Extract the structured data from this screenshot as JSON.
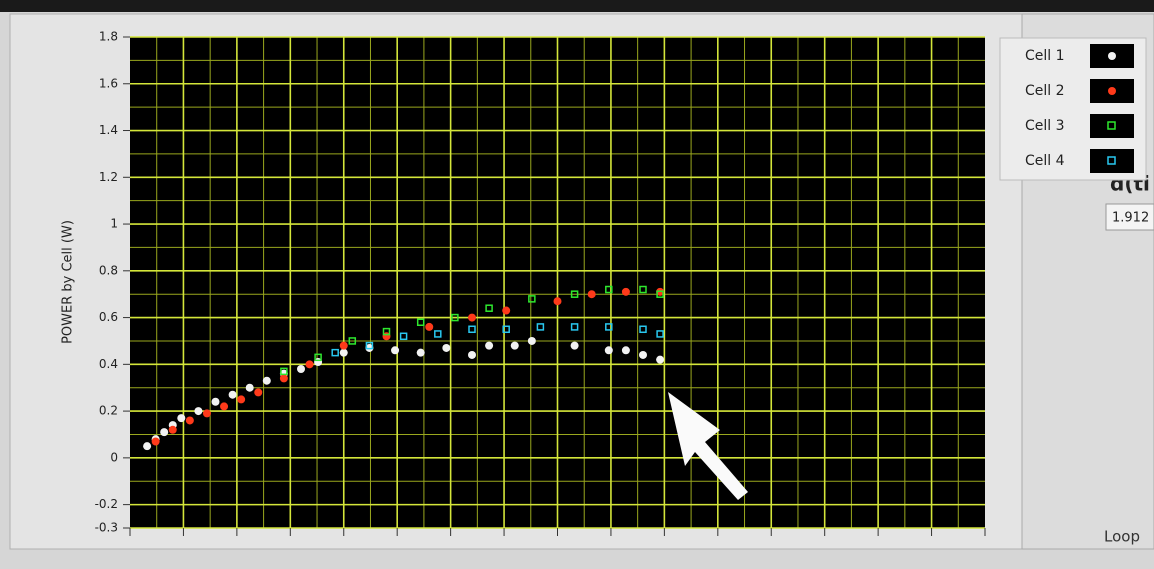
{
  "chart_data": {
    "type": "scatter",
    "ylabel": "POWER by Cell (W)",
    "ylim": [
      -0.3,
      1.8
    ],
    "yticks": [
      1.8,
      1.6,
      1.4,
      1.2,
      {
        "value": 1,
        "label": "1"
      },
      0.8,
      0.6,
      0.4,
      0.2,
      {
        "value": 0,
        "label": "0"
      },
      -0.2,
      -0.3
    ],
    "xlim": [
      0,
      100
    ],
    "grid": true,
    "legend": "top-right",
    "series": [
      {
        "name": "Cell 1",
        "color": "#f2f2f2",
        "x": [
          2,
          3,
          4,
          5,
          6,
          8,
          10,
          12,
          14,
          16,
          18,
          20,
          22,
          25,
          28,
          31,
          34,
          37,
          40,
          42,
          45,
          47,
          52,
          56,
          58,
          60,
          62
        ],
        "values": [
          0.05,
          0.08,
          0.11,
          0.14,
          0.17,
          0.2,
          0.24,
          0.27,
          0.3,
          0.33,
          0.36,
          0.38,
          0.41,
          0.45,
          0.47,
          0.46,
          0.45,
          0.47,
          0.44,
          0.48,
          0.48,
          0.5,
          0.48,
          0.46,
          0.46,
          0.44,
          0.42
        ]
      },
      {
        "name": "Cell 2",
        "color": "#ff3a1a",
        "x": [
          3,
          5,
          7,
          9,
          11,
          13,
          15,
          18,
          21,
          25,
          30,
          35,
          40,
          44,
          50,
          54,
          58,
          62
        ],
        "values": [
          0.07,
          0.12,
          0.16,
          0.19,
          0.22,
          0.25,
          0.28,
          0.34,
          0.4,
          0.48,
          0.52,
          0.56,
          0.6,
          0.63,
          0.67,
          0.7,
          0.71,
          0.71
        ]
      },
      {
        "name": "Cell 3",
        "color": "#2ee82e",
        "x": [
          18,
          22,
          26,
          30,
          34,
          38,
          42,
          47,
          52,
          56,
          60,
          62
        ],
        "values": [
          0.37,
          0.43,
          0.5,
          0.54,
          0.58,
          0.6,
          0.64,
          0.68,
          0.7,
          0.72,
          0.72,
          0.7
        ]
      },
      {
        "name": "Cell 4",
        "color": "#29c8f0",
        "x": [
          24,
          28,
          32,
          36,
          40,
          44,
          48,
          52,
          56,
          60,
          62
        ],
        "values": [
          0.45,
          0.48,
          0.52,
          0.53,
          0.55,
          0.55,
          0.56,
          0.56,
          0.56,
          0.55,
          0.53
        ]
      }
    ]
  },
  "ui": {
    "indicator_label": "d(ti",
    "indicator_value": "1.912",
    "loop_label": "Loop"
  }
}
